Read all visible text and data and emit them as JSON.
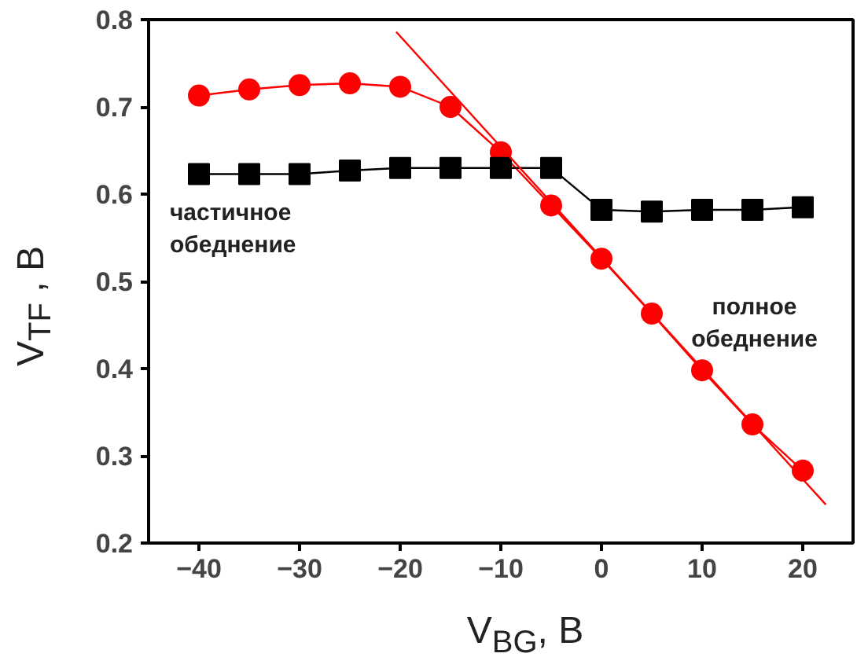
{
  "chart_data": {
    "type": "line",
    "xlabel": "V$_{BG}$, B",
    "ylabel": "V$_{TF}$ , B",
    "x": [
      -40,
      -35,
      -30,
      -25,
      -20,
      -15,
      -10,
      -5,
      0,
      5,
      10,
      15,
      20
    ],
    "series": [
      {
        "color": "#ff0000",
        "marker": "circle",
        "values": [
          0.713,
          0.72,
          0.725,
          0.727,
          0.723,
          0.7,
          0.648,
          0.587,
          0.526,
          0.463,
          0.398,
          0.336,
          0.283
        ]
      },
      {
        "color": "#000000",
        "marker": "square",
        "values": [
          0.623,
          0.623,
          0.623,
          0.627,
          0.63,
          0.63,
          0.63,
          0.63,
          0.582,
          0.58,
          0.582,
          0.582,
          0.585
        ]
      },
      {
        "type": "line",
        "color": "#ff0000",
        "marker": "none",
        "x": [
          -20.4,
          22.3
        ],
        "values": [
          0.786,
          0.244
        ]
      }
    ],
    "xlim": [
      -45,
      25
    ],
    "ylim": [
      0.2,
      0.8
    ],
    "xticks": [
      -40,
      -30,
      -20,
      -10,
      0,
      10,
      20
    ],
    "yticks": [
      0.2,
      0.3,
      0.4,
      0.5,
      0.6,
      0.7,
      0.8
    ],
    "annotations": [
      "частичное\nобеднение",
      "полное\nобеднение"
    ],
    "grid": false
  }
}
